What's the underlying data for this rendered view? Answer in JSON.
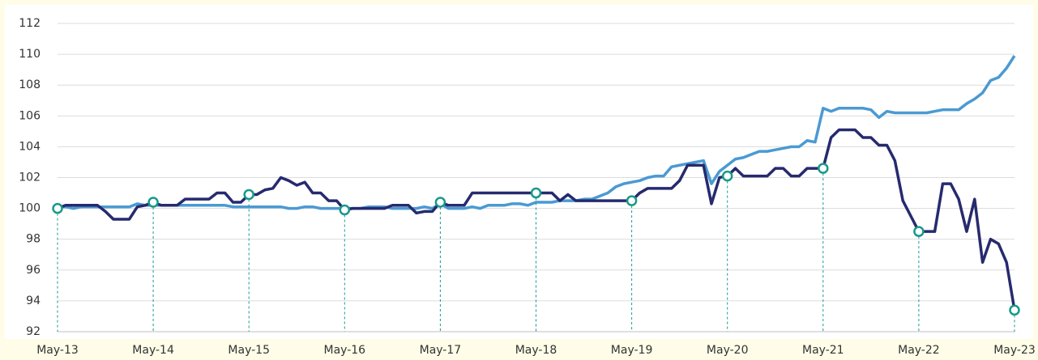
{
  "chart_data": {
    "type": "line",
    "categories": [
      "May-13",
      null,
      null,
      null,
      null,
      null,
      null,
      null,
      null,
      null,
      null,
      null,
      "May-14",
      null,
      null,
      null,
      null,
      null,
      null,
      null,
      null,
      null,
      null,
      null,
      "May-15",
      null,
      null,
      null,
      null,
      null,
      null,
      null,
      null,
      null,
      null,
      null,
      "May-16",
      null,
      null,
      null,
      null,
      null,
      null,
      null,
      null,
      null,
      null,
      null,
      "May-17",
      null,
      null,
      null,
      null,
      null,
      null,
      null,
      null,
      null,
      null,
      null,
      "May-18",
      null,
      null,
      null,
      null,
      null,
      null,
      null,
      null,
      null,
      null,
      null,
      "May-19",
      null,
      null,
      null,
      null,
      null,
      null,
      null,
      null,
      null,
      null,
      null,
      "May-20",
      null,
      null,
      null,
      null,
      null,
      null,
      null,
      null,
      null,
      null,
      null,
      "May-21",
      null,
      null,
      null,
      null,
      null,
      null,
      null,
      null,
      null,
      null,
      null,
      "May-22",
      null,
      null,
      null,
      null,
      null,
      null,
      null,
      null,
      null,
      null,
      null,
      "May-23"
    ],
    "series": [
      {
        "color": "#262a6e",
        "marker_color": "#17998a",
        "values": [
          100.0,
          100.2,
          100.2,
          100.2,
          100.2,
          100.2,
          99.8,
          99.3,
          99.3,
          99.3,
          100.1,
          100.2,
          100.4,
          100.2,
          100.2,
          100.2,
          100.6,
          100.6,
          100.6,
          100.6,
          101.0,
          101.0,
          100.4,
          100.4,
          100.9,
          100.9,
          101.2,
          101.3,
          102.0,
          101.8,
          101.5,
          101.7,
          101.0,
          101.0,
          100.5,
          100.5,
          99.9,
          100.0,
          100.0,
          100.0,
          100.0,
          100.0,
          100.2,
          100.2,
          100.2,
          99.7,
          99.8,
          99.8,
          100.4,
          100.2,
          100.2,
          100.2,
          101.0,
          101.0,
          101.0,
          101.0,
          101.0,
          101.0,
          101.0,
          101.0,
          101.0,
          101.0,
          101.0,
          100.5,
          100.9,
          100.5,
          100.5,
          100.5,
          100.5,
          100.5,
          100.5,
          100.5,
          100.5,
          101.0,
          101.3,
          101.3,
          101.3,
          101.3,
          101.8,
          102.8,
          102.8,
          102.8,
          100.3,
          102.0,
          102.1,
          102.6,
          102.1,
          102.1,
          102.1,
          102.1,
          102.6,
          102.6,
          102.1,
          102.1,
          102.6,
          102.6,
          102.6,
          104.6,
          105.1,
          105.1,
          105.1,
          104.6,
          104.6,
          104.1,
          104.1,
          103.1,
          100.5,
          99.5,
          98.5,
          98.5,
          98.5,
          101.6,
          101.6,
          100.6,
          98.5,
          100.6,
          96.5,
          98.0,
          97.7,
          96.5,
          93.4
        ]
      },
      {
        "color": "#4a9ad3",
        "values": [
          100.1,
          100.1,
          100.0,
          100.1,
          100.1,
          100.1,
          100.1,
          100.1,
          100.1,
          100.1,
          100.3,
          100.2,
          100.2,
          100.2,
          100.2,
          100.2,
          100.2,
          100.2,
          100.2,
          100.2,
          100.2,
          100.2,
          100.1,
          100.1,
          100.1,
          100.1,
          100.1,
          100.1,
          100.1,
          100.0,
          100.0,
          100.1,
          100.1,
          100.0,
          100.0,
          100.0,
          100.0,
          100.0,
          100.0,
          100.1,
          100.1,
          100.1,
          100.0,
          100.0,
          100.0,
          100.0,
          100.1,
          100.0,
          100.3,
          100.0,
          100.0,
          100.0,
          100.1,
          100.0,
          100.2,
          100.2,
          100.2,
          100.3,
          100.3,
          100.2,
          100.4,
          100.4,
          100.4,
          100.5,
          100.5,
          100.5,
          100.6,
          100.6,
          100.8,
          101.0,
          101.4,
          101.6,
          101.7,
          101.8,
          102.0,
          102.1,
          102.1,
          102.7,
          102.8,
          102.9,
          103.0,
          103.1,
          101.6,
          102.4,
          102.8,
          103.2,
          103.3,
          103.5,
          103.7,
          103.7,
          103.8,
          103.9,
          104.0,
          104.0,
          104.4,
          104.3,
          106.5,
          106.3,
          106.5,
          106.5,
          106.5,
          106.5,
          106.4,
          105.9,
          106.3,
          106.2,
          106.2,
          106.2,
          106.2,
          106.2,
          106.3,
          106.4,
          106.4,
          106.4,
          106.8,
          107.1,
          107.5,
          108.3,
          108.5,
          109.1,
          109.9
        ]
      }
    ],
    "ylim": [
      92,
      112
    ],
    "yticks": [
      92,
      94,
      96,
      98,
      100,
      102,
      104,
      106,
      108,
      110,
      112
    ],
    "grid": true
  }
}
